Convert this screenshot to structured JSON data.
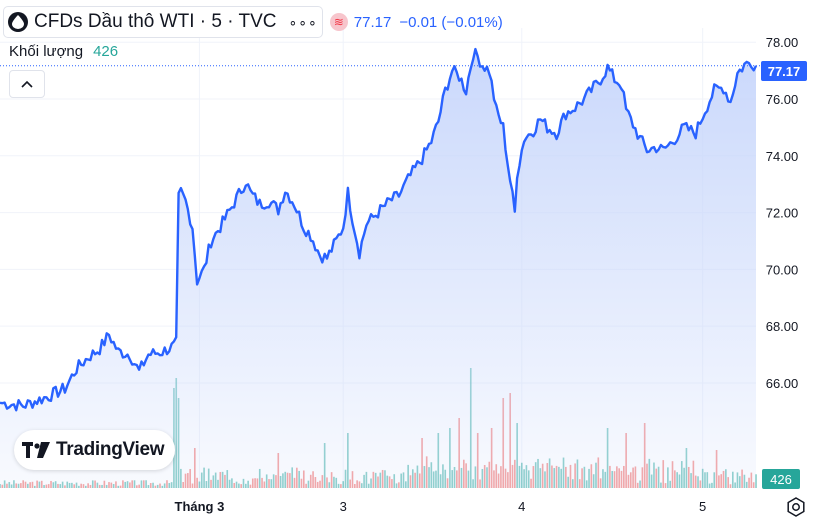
{
  "header": {
    "title": "CFDs Dầu thô WTI · 5 · TVC",
    "more_label": "∘∘∘",
    "last_price": "77.17",
    "change": "−0.01 (−0.01%)"
  },
  "volume": {
    "label": "Khối lượng",
    "value": "426"
  },
  "logo": {
    "text": "TradingView"
  },
  "price_axis_tag": "77.17",
  "volume_axis_tag": "426",
  "colors": {
    "line": "#2962ff",
    "fill_top": "#c7d6fb",
    "grid": "#f0f3fa",
    "volume_up": "#26a69a",
    "volume_down": "#ef5350",
    "text": "#131722"
  },
  "chart_data": {
    "type": "area",
    "x_ticks": [
      {
        "label": "Tháng 3",
        "bold": true,
        "index": 86
      },
      {
        "label": "3",
        "bold": false,
        "index": 148
      },
      {
        "label": "4",
        "bold": false,
        "index": 225
      },
      {
        "label": "5",
        "bold": false,
        "index": 303
      }
    ],
    "ylim": [
      62.3,
      78.5
    ],
    "y_ticks": [
      66,
      68,
      70,
      72,
      74,
      76,
      78
    ],
    "last_value": 77.17,
    "grid": true,
    "x_count": 327,
    "anchors": [
      [
        0,
        65.3
      ],
      [
        10,
        65.2
      ],
      [
        20,
        65.5
      ],
      [
        28,
        65.8
      ],
      [
        33,
        66.5
      ],
      [
        38,
        66.9
      ],
      [
        43,
        67.2
      ],
      [
        47,
        67.7
      ],
      [
        51,
        67.1
      ],
      [
        56,
        67.0
      ],
      [
        60,
        66.4
      ],
      [
        64,
        67.0
      ],
      [
        70,
        67.1
      ],
      [
        75,
        67.3
      ],
      [
        76,
        67.4
      ],
      [
        77,
        72.5
      ],
      [
        78,
        72.7
      ],
      [
        80,
        72.4
      ],
      [
        83,
        71.5
      ],
      [
        85,
        69.6
      ],
      [
        88,
        70.0
      ],
      [
        91,
        71.0
      ],
      [
        95,
        71.5
      ],
      [
        100,
        72.2
      ],
      [
        104,
        72.8
      ],
      [
        106,
        73.1
      ],
      [
        108,
        72.7
      ],
      [
        112,
        72.3
      ],
      [
        116,
        72.4
      ],
      [
        120,
        72.1
      ],
      [
        123,
        72.8
      ],
      [
        127,
        72.3
      ],
      [
        131,
        71.5
      ],
      [
        134,
        71.2
      ],
      [
        138,
        70.5
      ],
      [
        141,
        70.4
      ],
      [
        145,
        71.0
      ],
      [
        148,
        71.5
      ],
      [
        150,
        72.7
      ],
      [
        152,
        71.8
      ],
      [
        155,
        70.6
      ],
      [
        158,
        71.6
      ],
      [
        163,
        72.0
      ],
      [
        168,
        72.4
      ],
      [
        172,
        72.6
      ],
      [
        177,
        73.3
      ],
      [
        182,
        73.9
      ],
      [
        186,
        74.5
      ],
      [
        189,
        75.2
      ],
      [
        192,
        76.3
      ],
      [
        195,
        77.0
      ],
      [
        198,
        76.8
      ],
      [
        201,
        76.3
      ],
      [
        204,
        77.6
      ],
      [
        206,
        77.5
      ],
      [
        208,
        77.2
      ],
      [
        211,
        77.0
      ],
      [
        214,
        75.6
      ],
      [
        217,
        75.0
      ],
      [
        219,
        73.7
      ],
      [
        222,
        72.0
      ],
      [
        223,
        73.4
      ],
      [
        226,
        74.6
      ],
      [
        230,
        74.9
      ],
      [
        233,
        75.3
      ],
      [
        236,
        75.0
      ],
      [
        240,
        74.8
      ],
      [
        244,
        75.5
      ],
      [
        248,
        75.7
      ],
      [
        252,
        76.0
      ],
      [
        255,
        76.3
      ],
      [
        259,
        76.7
      ],
      [
        262,
        77.1
      ],
      [
        265,
        76.7
      ],
      [
        268,
        76.5
      ],
      [
        270,
        75.6
      ],
      [
        273,
        75.1
      ],
      [
        276,
        74.6
      ],
      [
        279,
        74.2
      ],
      [
        283,
        74.3
      ],
      [
        286,
        74.2
      ],
      [
        290,
        74.5
      ],
      [
        295,
        75.0
      ],
      [
        300,
        74.8
      ],
      [
        304,
        75.6
      ],
      [
        308,
        76.3
      ],
      [
        312,
        76.4
      ],
      [
        315,
        75.9
      ],
      [
        318,
        76.9
      ],
      [
        321,
        77.2
      ],
      [
        324,
        77.3
      ],
      [
        326,
        77.17
      ]
    ],
    "volume_peaks": [
      [
        75,
        100
      ],
      [
        76,
        110
      ],
      [
        77,
        90
      ],
      [
        84,
        40
      ],
      [
        120,
        35
      ],
      [
        140,
        45
      ],
      [
        150,
        55
      ],
      [
        182,
        50
      ],
      [
        189,
        55
      ],
      [
        194,
        60
      ],
      [
        198,
        70
      ],
      [
        203,
        120
      ],
      [
        206,
        55
      ],
      [
        212,
        60
      ],
      [
        217,
        90
      ],
      [
        220,
        95
      ],
      [
        223,
        65
      ],
      [
        262,
        60
      ],
      [
        270,
        55
      ],
      [
        278,
        65
      ],
      [
        296,
        40
      ],
      [
        309,
        38
      ]
    ]
  }
}
